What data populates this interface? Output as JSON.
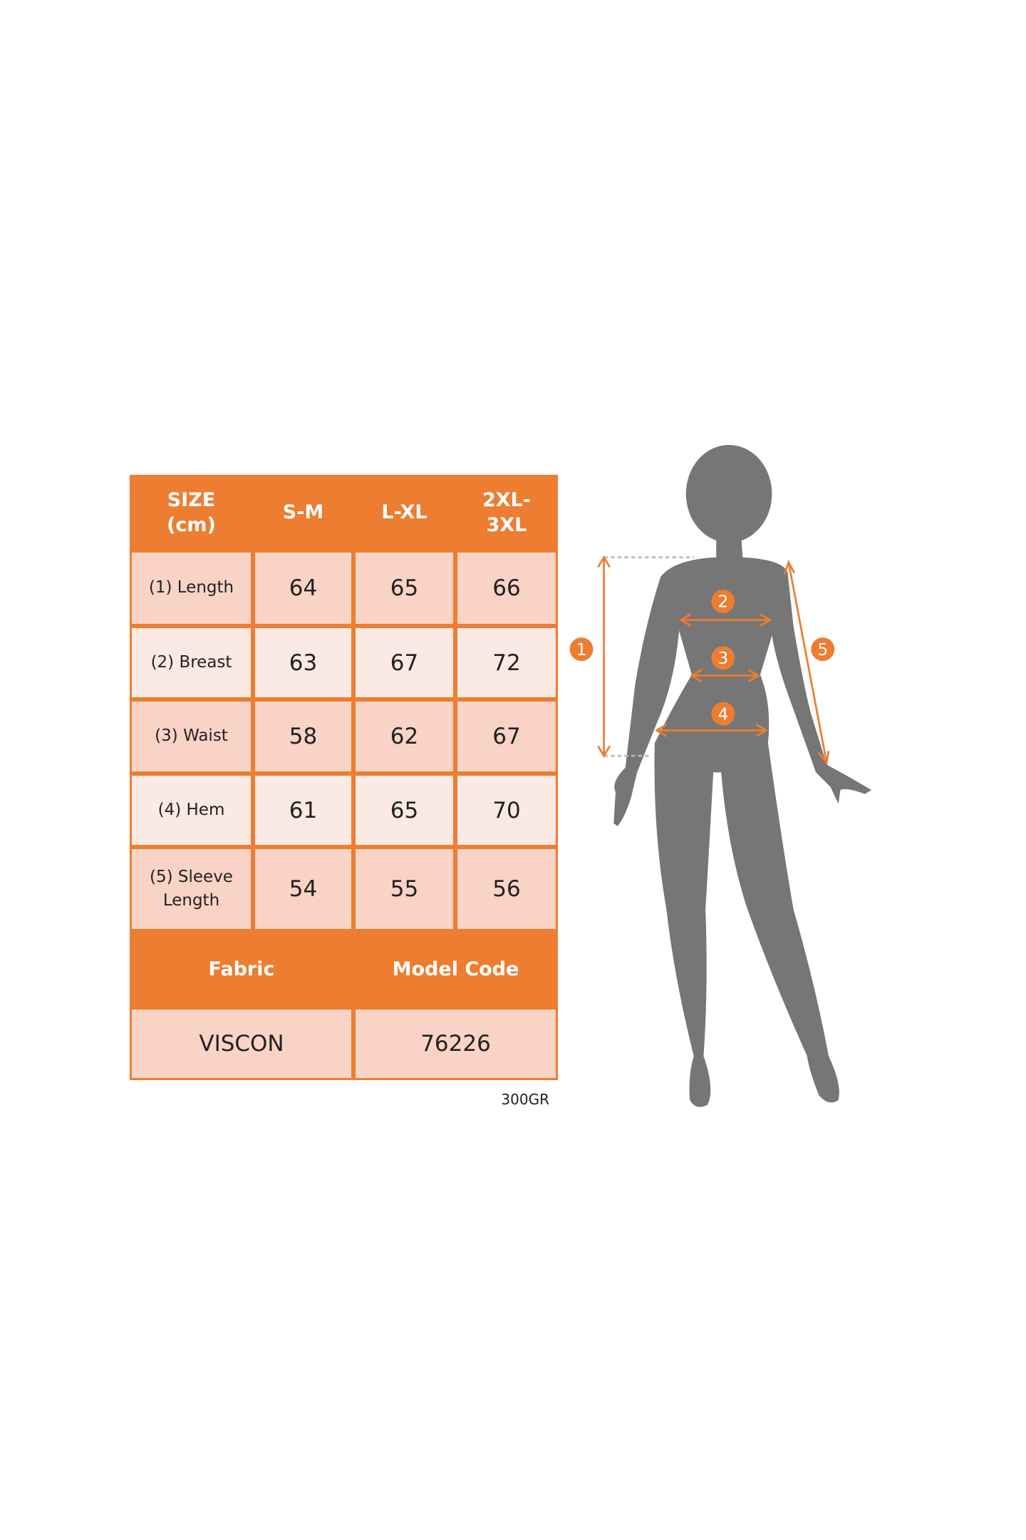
{
  "size_table": {
    "header": [
      "SIZE\n(cm)",
      "S-M",
      "L-XL",
      "2XL-\n3XL"
    ],
    "rows": [
      {
        "label": "(1) Length",
        "values": [
          "64",
          "65",
          "66"
        ]
      },
      {
        "label": "(2) Breast",
        "values": [
          "63",
          "67",
          "72"
        ]
      },
      {
        "label": "(3) Waist",
        "values": [
          "58",
          "62",
          "67"
        ]
      },
      {
        "label": "(4) Hem",
        "values": [
          "61",
          "65",
          "70"
        ]
      },
      {
        "label": "(5) Sleeve\nLength",
        "values": [
          "54",
          "55",
          "56"
        ]
      }
    ],
    "footer_headers": [
      "Fabric",
      "Model Code"
    ],
    "footer_values": [
      "VISCON",
      "76226"
    ]
  },
  "weight_note": "300GR",
  "figure": {
    "markers": [
      "1",
      "2",
      "3",
      "4",
      "5"
    ],
    "silhouette_color": "#767676",
    "accent_color": "#ED7D31"
  }
}
